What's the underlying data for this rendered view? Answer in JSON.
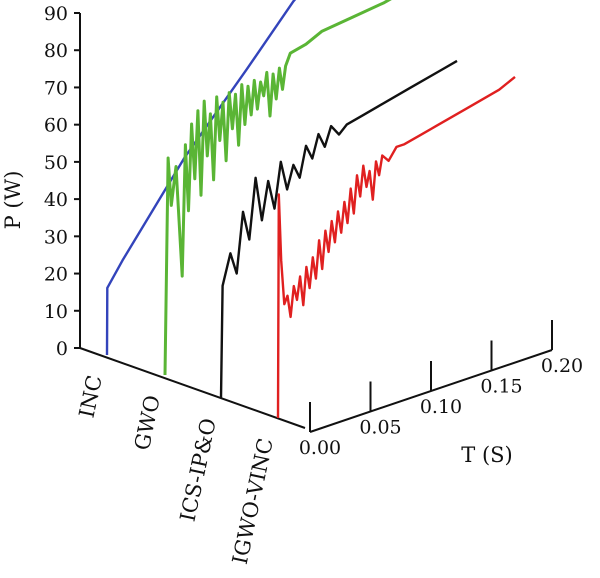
{
  "chart_data": {
    "type": "line",
    "projection": "3d-waterfall",
    "ylabel": "P (W)",
    "xlabel": "T (S)",
    "y_ticks": [
      "0",
      "10",
      "20",
      "30",
      "40",
      "50",
      "60",
      "70",
      "80",
      "90"
    ],
    "x_ticks": [
      "0.00",
      "0.05",
      "0.10",
      "0.15",
      "0.20"
    ],
    "ylim": [
      0,
      90
    ],
    "xlim": [
      0,
      0.2
    ],
    "categories": [
      "INC",
      "GWO",
      "ICS-IP&O",
      "IGWO-VINC"
    ],
    "series": [
      {
        "name": "INC",
        "color": "#3344bb",
        "points": [
          [
            0,
            0
          ],
          [
            0.0002,
            18
          ],
          [
            0.01,
            24
          ],
          [
            0.05,
            46
          ],
          [
            0.09,
            64
          ],
          [
            0.12,
            78
          ],
          [
            0.14,
            85
          ],
          [
            0.15,
            86
          ]
        ]
      },
      {
        "name": "GWO",
        "color": "#5ab535",
        "points": [
          [
            0,
            0
          ],
          [
            0.002,
            58
          ],
          [
            0.004,
            45
          ],
          [
            0.007,
            55
          ],
          [
            0.009,
            40
          ],
          [
            0.011,
            25
          ],
          [
            0.013,
            60
          ],
          [
            0.015,
            42
          ],
          [
            0.017,
            65
          ],
          [
            0.019,
            50
          ],
          [
            0.021,
            68
          ],
          [
            0.023,
            45
          ],
          [
            0.025,
            70
          ],
          [
            0.027,
            55
          ],
          [
            0.029,
            66
          ],
          [
            0.031,
            48
          ],
          [
            0.033,
            70
          ],
          [
            0.035,
            58
          ],
          [
            0.037,
            68
          ],
          [
            0.039,
            52
          ],
          [
            0.041,
            70
          ],
          [
            0.043,
            60
          ],
          [
            0.045,
            69
          ],
          [
            0.047,
            55
          ],
          [
            0.049,
            71
          ],
          [
            0.051,
            60
          ],
          [
            0.053,
            70
          ],
          [
            0.055,
            62
          ],
          [
            0.057,
            71
          ],
          [
            0.059,
            63
          ],
          [
            0.061,
            70
          ],
          [
            0.063,
            66
          ],
          [
            0.065,
            72
          ],
          [
            0.067,
            60
          ],
          [
            0.069,
            71
          ],
          [
            0.071,
            64
          ],
          [
            0.073,
            72
          ],
          [
            0.075,
            66
          ],
          [
            0.077,
            72
          ],
          [
            0.08,
            75
          ],
          [
            0.09,
            76
          ],
          [
            0.1,
            78
          ],
          [
            0.12,
            79
          ],
          [
            0.14,
            80
          ],
          [
            0.15,
            81
          ]
        ]
      },
      {
        "name": "ICS-IP&O",
        "color": "#111111",
        "points": [
          [
            0,
            0
          ],
          [
            0.001,
            30
          ],
          [
            0.006,
            38
          ],
          [
            0.01,
            32
          ],
          [
            0.014,
            48
          ],
          [
            0.018,
            40
          ],
          [
            0.022,
            56
          ],
          [
            0.026,
            44
          ],
          [
            0.03,
            54
          ],
          [
            0.034,
            46
          ],
          [
            0.038,
            58
          ],
          [
            0.042,
            50
          ],
          [
            0.046,
            56
          ],
          [
            0.05,
            52
          ],
          [
            0.054,
            60
          ],
          [
            0.058,
            56
          ],
          [
            0.062,
            62
          ],
          [
            0.066,
            58
          ],
          [
            0.07,
            63
          ],
          [
            0.075,
            60
          ],
          [
            0.08,
            62
          ],
          [
            0.09,
            63
          ],
          [
            0.1,
            64
          ],
          [
            0.12,
            66
          ],
          [
            0.14,
            68
          ],
          [
            0.15,
            69
          ]
        ]
      },
      {
        "name": "IGWO-VINC",
        "color": "#e02020",
        "points": [
          [
            0,
            0
          ],
          [
            0.0005,
            60
          ],
          [
            0.002,
            42
          ],
          [
            0.004,
            30
          ],
          [
            0.006,
            32
          ],
          [
            0.008,
            26
          ],
          [
            0.01,
            34
          ],
          [
            0.012,
            30
          ],
          [
            0.014,
            36
          ],
          [
            0.016,
            28
          ],
          [
            0.018,
            38
          ],
          [
            0.02,
            32
          ],
          [
            0.022,
            40
          ],
          [
            0.024,
            34
          ],
          [
            0.026,
            44
          ],
          [
            0.028,
            36
          ],
          [
            0.03,
            46
          ],
          [
            0.032,
            40
          ],
          [
            0.034,
            48
          ],
          [
            0.036,
            42
          ],
          [
            0.038,
            50
          ],
          [
            0.04,
            44
          ],
          [
            0.042,
            52
          ],
          [
            0.044,
            46
          ],
          [
            0.046,
            55
          ],
          [
            0.048,
            48
          ],
          [
            0.05,
            58
          ],
          [
            0.052,
            52
          ],
          [
            0.054,
            60
          ],
          [
            0.056,
            54
          ],
          [
            0.058,
            58
          ],
          [
            0.06,
            50
          ],
          [
            0.062,
            60
          ],
          [
            0.064,
            56
          ],
          [
            0.066,
            61
          ],
          [
            0.07,
            59
          ],
          [
            0.075,
            62
          ],
          [
            0.08,
            62
          ],
          [
            0.09,
            63
          ],
          [
            0.1,
            64
          ],
          [
            0.12,
            66
          ],
          [
            0.14,
            68
          ],
          [
            0.15,
            70
          ]
        ]
      }
    ],
    "grid": false,
    "legend": "none"
  }
}
